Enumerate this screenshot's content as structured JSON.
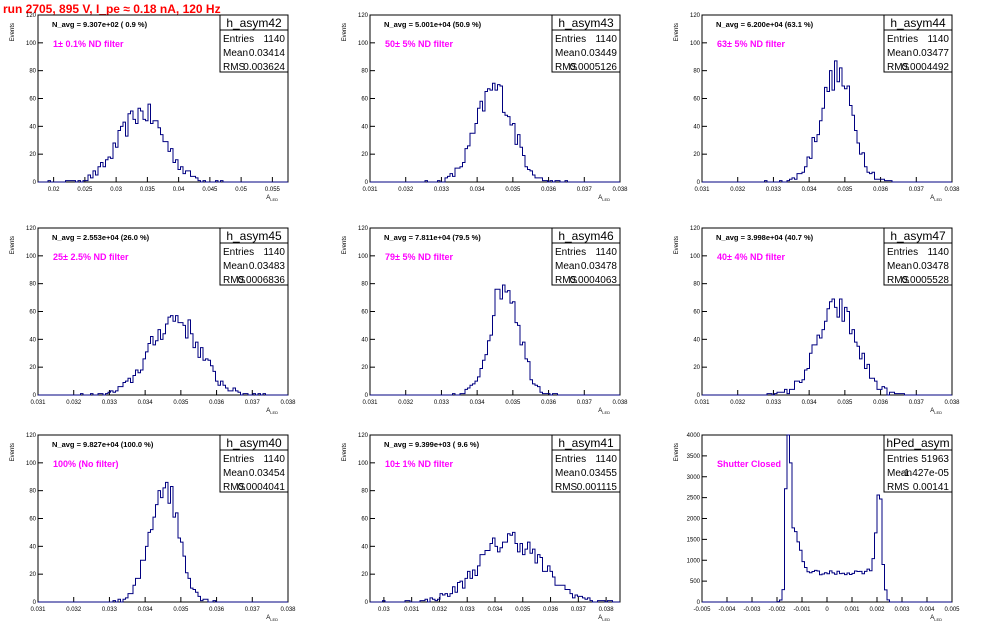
{
  "page_title": "run 2705,   895 V, I_pe ≈ 0.18 nA, 120 Hz",
  "colors": {
    "hist": "#000080",
    "note": "#ff00ff",
    "title": "#ff0000",
    "axis": "#000000"
  },
  "chart_data": [
    {
      "type": "bar",
      "name": "h_asym42",
      "entries": "1140",
      "mean": "0.03414",
      "rms": "0.003624",
      "navg_label": "N_avg = 9.307e+02 ( 0.9 %)",
      "note": "1± 0.1% ND filter",
      "ylabel": "Events",
      "xlabel": "A_LED",
      "xlim": [
        0.0175,
        0.0575
      ],
      "ylim": [
        0,
        120
      ],
      "xticks": [
        "0.02",
        "0.025",
        "0.03",
        "0.035",
        "0.04",
        "0.045",
        "0.05",
        "0.055"
      ],
      "xtick_vals": [
        0.02,
        0.025,
        0.03,
        0.035,
        0.04,
        0.045,
        0.05,
        0.055
      ],
      "yticks": [
        0,
        20,
        40,
        60,
        80,
        100,
        120
      ],
      "shape": {
        "kind": "gauss",
        "mu": 0.03414,
        "sigma": 0.003624,
        "peak": 50
      }
    },
    {
      "type": "bar",
      "name": "h_asym43",
      "entries": "1140",
      "mean": "0.03449",
      "rms": "0.0005126",
      "navg_label": "N_avg = 5.001e+04 (50.9 %)",
      "note": "50± 5% ND filter",
      "ylabel": "Events",
      "xlabel": "A_LED",
      "xlim": [
        0.031,
        0.038
      ],
      "ylim": [
        0,
        120
      ],
      "xticks": [
        "0.031",
        "0.032",
        "0.033",
        "0.034",
        "0.035",
        "0.036",
        "0.037",
        "0.038"
      ],
      "xtick_vals": [
        0.031,
        0.032,
        0.033,
        0.034,
        0.035,
        0.036,
        0.037,
        0.038
      ],
      "yticks": [
        0,
        20,
        40,
        60,
        80,
        100,
        120
      ],
      "shape": {
        "kind": "gauss",
        "mu": 0.03449,
        "sigma": 0.0005126,
        "peak": 67
      }
    },
    {
      "type": "bar",
      "name": "h_asym44",
      "entries": "1140",
      "mean": "0.03477",
      "rms": "0.0004492",
      "navg_label": "N_avg = 6.200e+04 (63.1 %)",
      "note": "63± 5% ND filter",
      "ylabel": "Events",
      "xlabel": "A_LED",
      "xlim": [
        0.031,
        0.038
      ],
      "ylim": [
        0,
        120
      ],
      "xticks": [
        "0.031",
        "0.032",
        "0.033",
        "0.034",
        "0.035",
        "0.036",
        "0.037",
        "0.038"
      ],
      "xtick_vals": [
        0.031,
        0.032,
        0.033,
        0.034,
        0.035,
        0.036,
        0.037,
        0.038
      ],
      "yticks": [
        0,
        20,
        40,
        60,
        80,
        100,
        120
      ],
      "shape": {
        "kind": "gauss",
        "mu": 0.03477,
        "sigma": 0.0004492,
        "peak": 78
      }
    },
    {
      "type": "bar",
      "name": "h_asym45",
      "entries": "1140",
      "mean": "0.03483",
      "rms": "0.0006836",
      "navg_label": "N_avg = 2.553e+04 (26.0 %)",
      "note": "25± 2.5% ND filter",
      "ylabel": "Events",
      "xlabel": "A_LED",
      "xlim": [
        0.031,
        0.038
      ],
      "ylim": [
        0,
        120
      ],
      "xticks": [
        "0.031",
        "0.032",
        "0.033",
        "0.034",
        "0.035",
        "0.036",
        "0.037",
        "0.038"
      ],
      "xtick_vals": [
        0.031,
        0.032,
        0.033,
        0.034,
        0.035,
        0.036,
        0.037,
        0.038
      ],
      "yticks": [
        0,
        20,
        40,
        60,
        80,
        100,
        120
      ],
      "shape": {
        "kind": "gauss",
        "mu": 0.03483,
        "sigma": 0.0006836,
        "peak": 55
      }
    },
    {
      "type": "bar",
      "name": "h_asym46",
      "entries": "1140",
      "mean": "0.03478",
      "rms": "0.0004063",
      "navg_label": "N_avg = 7.811e+04 (79.5 %)",
      "note": "79± 5% ND filter",
      "ylabel": "Events",
      "xlabel": "A_LED",
      "xlim": [
        0.031,
        0.038
      ],
      "ylim": [
        0,
        120
      ],
      "xticks": [
        "0.031",
        "0.032",
        "0.033",
        "0.034",
        "0.035",
        "0.036",
        "0.037",
        "0.038"
      ],
      "xtick_vals": [
        0.031,
        0.032,
        0.033,
        0.034,
        0.035,
        0.036,
        0.037,
        0.038
      ],
      "yticks": [
        0,
        20,
        40,
        60,
        80,
        100,
        120
      ],
      "shape": {
        "kind": "gauss",
        "mu": 0.03478,
        "sigma": 0.0004063,
        "peak": 80
      }
    },
    {
      "type": "bar",
      "name": "h_asym47",
      "entries": "1140",
      "mean": "0.03478",
      "rms": "0.0005528",
      "navg_label": "N_avg = 3.998e+04 (40.7 %)",
      "note": "40± 4% ND filter",
      "ylabel": "Events",
      "xlabel": "A_LED",
      "xlim": [
        0.031,
        0.038
      ],
      "ylim": [
        0,
        120
      ],
      "xticks": [
        "0.031",
        "0.032",
        "0.033",
        "0.034",
        "0.035",
        "0.036",
        "0.037",
        "0.038"
      ],
      "xtick_vals": [
        0.031,
        0.032,
        0.033,
        0.034,
        0.035,
        0.036,
        0.037,
        0.038
      ],
      "yticks": [
        0,
        20,
        40,
        60,
        80,
        100,
        120
      ],
      "shape": {
        "kind": "gauss",
        "mu": 0.03478,
        "sigma": 0.0005528,
        "peak": 62
      }
    },
    {
      "type": "bar",
      "name": "h_asym40",
      "entries": "1140",
      "mean": "0.03454",
      "rms": "0.0004041",
      "navg_label": "N_avg = 9.827e+04 (100.0 %)",
      "note": "100% (No filter)",
      "ylabel": "Events",
      "xlabel": "A_LED",
      "xlim": [
        0.031,
        0.038
      ],
      "ylim": [
        0,
        120
      ],
      "xticks": [
        "0.031",
        "0.032",
        "0.033",
        "0.034",
        "0.035",
        "0.036",
        "0.037",
        "0.038"
      ],
      "xtick_vals": [
        0.031,
        0.032,
        0.033,
        0.034,
        0.035,
        0.036,
        0.037,
        0.038
      ],
      "yticks": [
        0,
        20,
        40,
        60,
        80,
        100,
        120
      ],
      "shape": {
        "kind": "gauss",
        "mu": 0.03454,
        "sigma": 0.0004041,
        "peak": 85
      }
    },
    {
      "type": "bar",
      "name": "h_asym41",
      "entries": "1140",
      "mean": "0.03455",
      "rms": "0.001115",
      "navg_label": "N_avg = 9.399e+03 ( 9.6 %)",
      "note": "10± 1% ND filter",
      "ylabel": "Events",
      "xlabel": "A_LED",
      "xlim": [
        0.0295,
        0.0385
      ],
      "ylim": [
        0,
        120
      ],
      "xticks": [
        "0.03",
        "0.031",
        "0.032",
        "0.033",
        "0.034",
        "0.035",
        "0.036",
        "0.037",
        "0.038"
      ],
      "xtick_vals": [
        0.03,
        0.031,
        0.032,
        0.033,
        0.034,
        0.035,
        0.036,
        0.037,
        0.038
      ],
      "yticks": [
        0,
        20,
        40,
        60,
        80,
        100,
        120
      ],
      "shape": {
        "kind": "gauss",
        "mu": 0.03455,
        "sigma": 0.001115,
        "peak": 45
      }
    },
    {
      "type": "bar",
      "name": "hPed_asym",
      "entries": "51963",
      "mean": "-1.427e-05",
      "rms": "0.00141",
      "navg_label": "",
      "note": "Shutter Closed",
      "ylabel": "Events",
      "xlabel": "A_LED",
      "xlim": [
        -0.005,
        0.005
      ],
      "ylim": [
        0,
        4000
      ],
      "xticks": [
        "-0.005",
        "-0.004",
        "-0.003",
        "-0.002",
        "-0.001",
        "0",
        "0.001",
        "0.002",
        "0.003",
        "0.004",
        "0.005"
      ],
      "xtick_vals": [
        -0.005,
        -0.004,
        -0.003,
        -0.002,
        -0.001,
        0,
        0.001,
        0.002,
        0.003,
        0.004,
        0.005
      ],
      "yticks": [
        0,
        500,
        1000,
        1500,
        2000,
        2500,
        3000,
        3500,
        4000
      ],
      "shape": {
        "kind": "ped"
      }
    }
  ]
}
